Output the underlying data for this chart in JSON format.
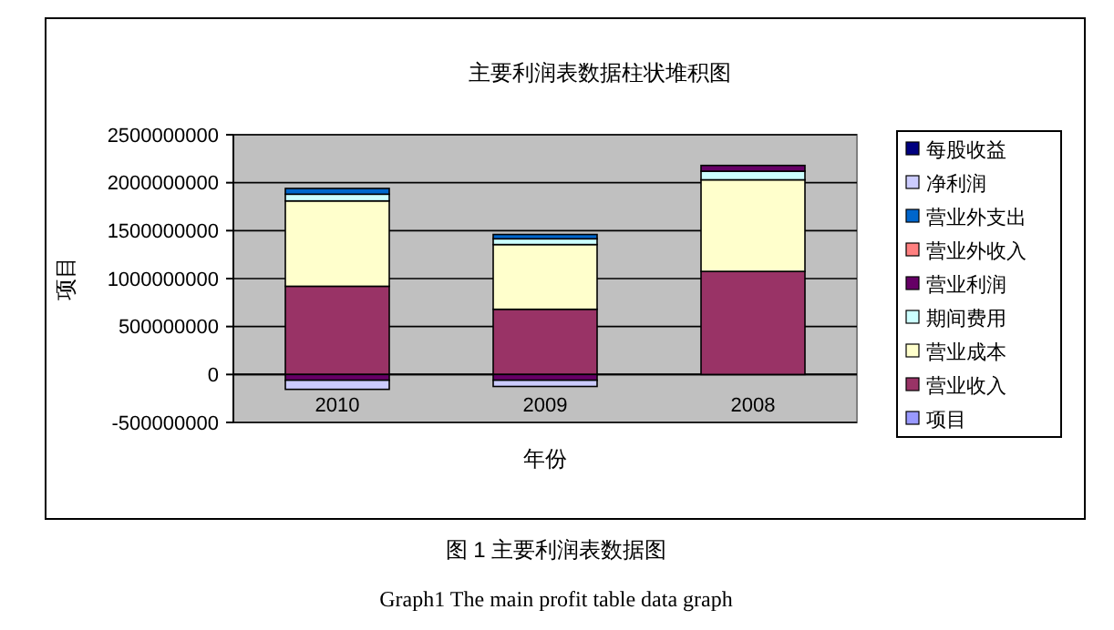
{
  "chart_data": {
    "type": "bar",
    "stacked": true,
    "title": "主要利润表数据柱状堆积图",
    "xlabel": "年份",
    "ylabel": "项目",
    "categories": [
      "2010",
      "2009",
      "2008"
    ],
    "series": [
      {
        "name": "项目",
        "color": "#9999ff",
        "values": [
          null,
          null,
          null
        ]
      },
      {
        "name": "营业收入",
        "color": "#993366",
        "values": [
          920000000,
          680000000,
          1075000000
        ]
      },
      {
        "name": "营业成本",
        "color": "#ffffcc",
        "values": [
          890000000,
          675000000,
          955000000
        ]
      },
      {
        "name": "期间费用",
        "color": "#ccffff",
        "values": [
          70000000,
          60000000,
          90000000
        ]
      },
      {
        "name": "营业利润",
        "color": "#660066",
        "values": [
          -60000000,
          -60000000,
          60000000
        ]
      },
      {
        "name": "营业外收入",
        "color": "#ff8080",
        "values": [
          null,
          null,
          null
        ]
      },
      {
        "name": "营业外支出",
        "color": "#0066cc",
        "values": [
          60000000,
          45000000,
          null
        ]
      },
      {
        "name": "净利润",
        "color": "#ccccff",
        "values": [
          -95000000,
          -65000000,
          null
        ]
      },
      {
        "name": "每股收益",
        "color": "#000080",
        "values": [
          null,
          null,
          null
        ]
      }
    ],
    "ylim": [
      -500000000,
      2500000000
    ],
    "yticks": [
      -500000000,
      0,
      500000000,
      1000000000,
      1500000000,
      2000000000,
      2500000000
    ],
    "grid": "y",
    "legend": "right",
    "annotations": [
      "图 1  主要利润表数据图",
      "Graph1    The main profit table data graph"
    ]
  }
}
